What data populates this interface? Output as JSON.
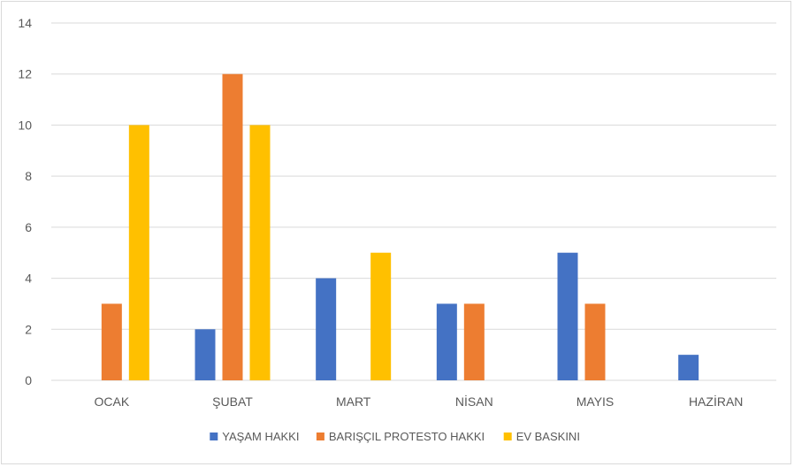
{
  "chart_data": {
    "type": "bar",
    "title": "",
    "xlabel": "",
    "ylabel": "",
    "ylim": [
      0,
      14
    ],
    "yticks": [
      0,
      2,
      4,
      6,
      8,
      10,
      12,
      14
    ],
    "grid": true,
    "legend_position": "bottom",
    "categories": [
      "OCAK",
      "ŞUBAT",
      "MART",
      "NİSAN",
      "MAYIS",
      "HAZİRAN"
    ],
    "series": [
      {
        "name": "YAŞAM HAKKI",
        "color": "#4472c4",
        "values": [
          0,
          2,
          4,
          3,
          5,
          1
        ]
      },
      {
        "name": "BARIŞÇIL PROTESTO HAKKI",
        "color": "#ed7d31",
        "values": [
          3,
          12,
          0,
          3,
          3,
          0
        ]
      },
      {
        "name": "EV BASKINI",
        "color": "#ffc000",
        "values": [
          10,
          10,
          5,
          0,
          0,
          0
        ]
      }
    ]
  }
}
